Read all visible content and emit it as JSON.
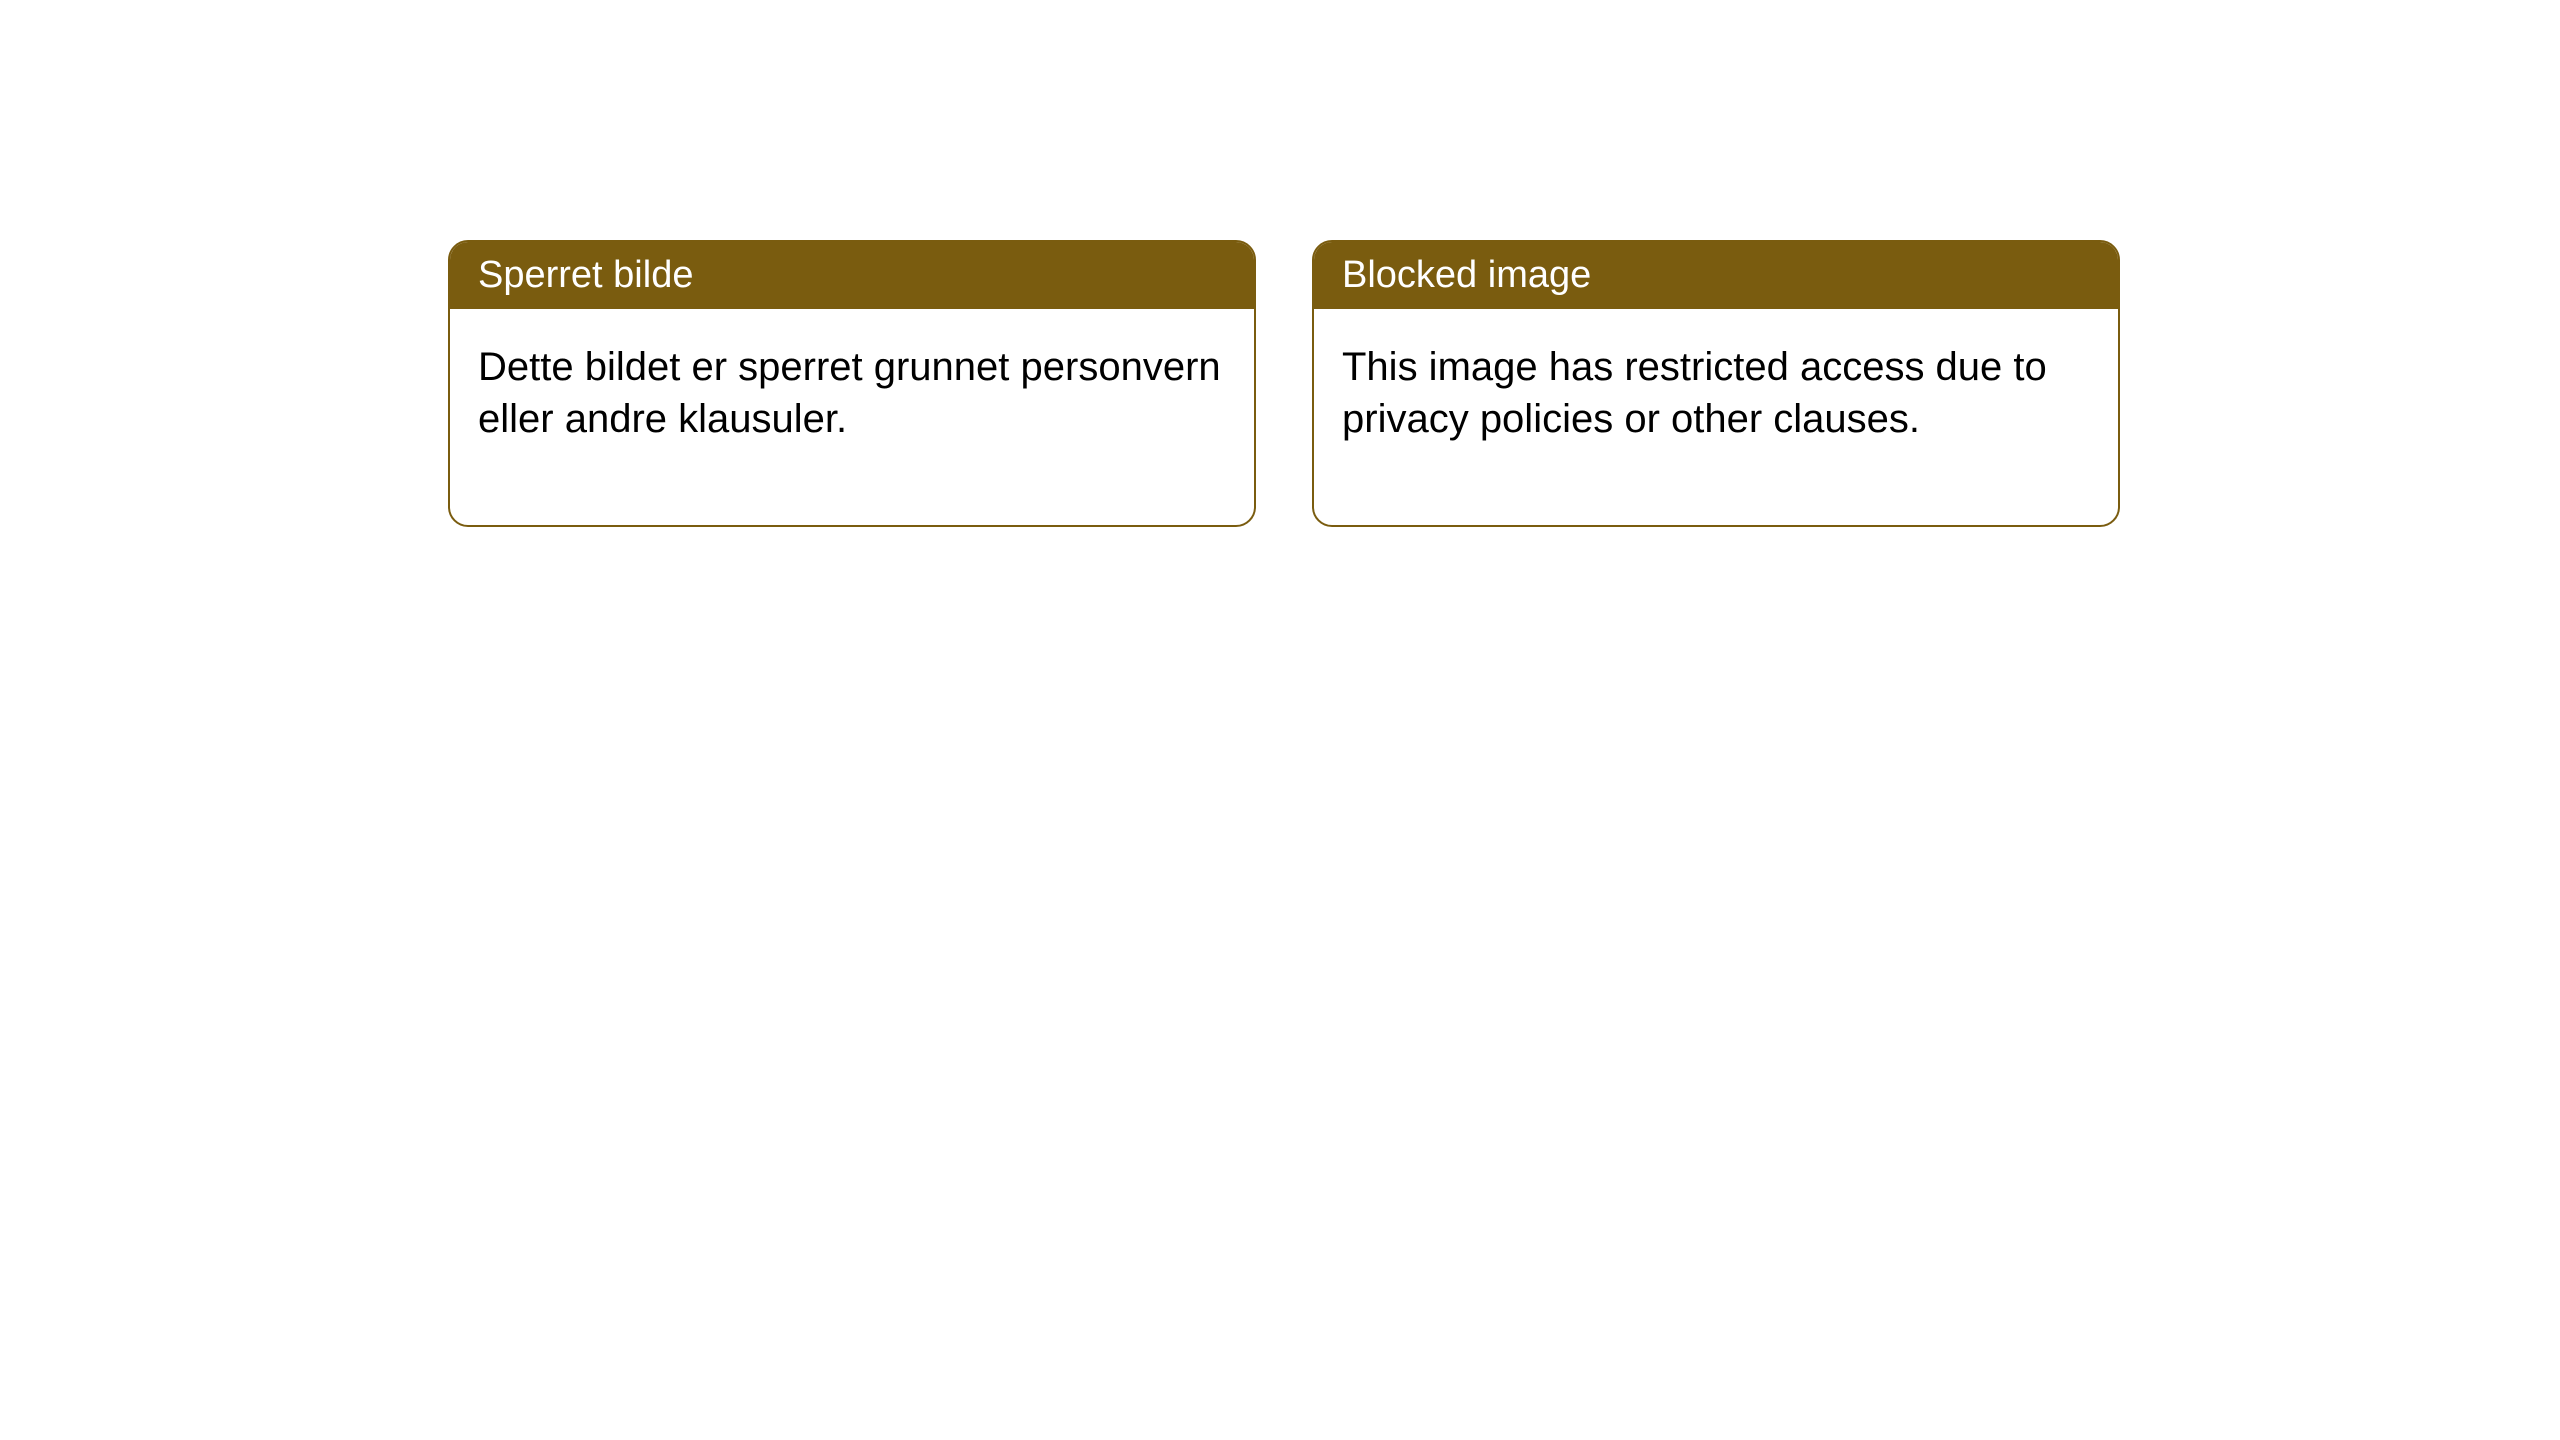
{
  "notices": [
    {
      "title": "Sperret bilde",
      "body": "Dette bildet er sperret grunnet personvern eller andre klausuler."
    },
    {
      "title": "Blocked image",
      "body": "This image has restricted access due to privacy policies or other clauses."
    }
  ],
  "style": {
    "header_background": "#7a5c0f",
    "header_text_color": "#ffffff",
    "card_border_color": "#7a5c0f",
    "card_background": "#ffffff",
    "body_text_color": "#000000",
    "page_background": "#ffffff",
    "border_radius": 20,
    "title_fontsize": 38,
    "body_fontsize": 40
  }
}
